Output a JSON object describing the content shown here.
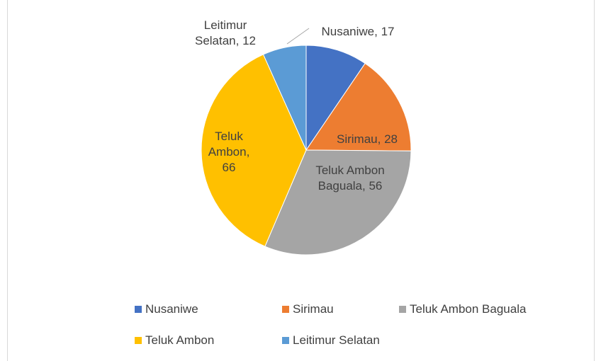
{
  "chart_data": {
    "type": "pie",
    "categories": [
      "Nusaniwe",
      "Sirimau",
      "Teluk Ambon Baguala",
      "Teluk Ambon",
      "Leitimur Selatan"
    ],
    "values": [
      17,
      28,
      56,
      66,
      12
    ],
    "value_labels": [
      "Nusaniwe, 17",
      "Sirimau, 28",
      "Teluk Ambon Baguala, 56",
      "Teluk Ambon, 66",
      "Leitimur Selatan, 12"
    ],
    "colors": [
      "#4472c4",
      "#ed7d31",
      "#a5a5a5",
      "#ffc000",
      "#5b9bd5"
    ],
    "legend": "bottom"
  }
}
